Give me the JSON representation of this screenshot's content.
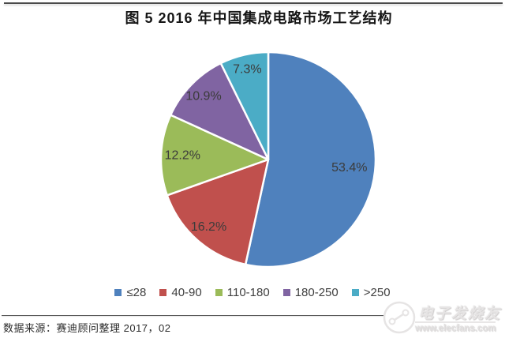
{
  "header": {
    "title": "图 5  2016 年中国集成电路市场工艺结构"
  },
  "chart_data": {
    "type": "pie",
    "title": "图 5  2016 年中国集成电路市场工艺结构",
    "categories": [
      "≤28",
      "40-90",
      "110-180",
      "180-250",
      ">250"
    ],
    "values": [
      53.4,
      16.2,
      12.2,
      10.9,
      7.3
    ],
    "value_labels": [
      "53.4%",
      "16.2%",
      "12.2%",
      "10.9%",
      "7.3%"
    ],
    "colors": [
      "#4f81bd",
      "#c0504d",
      "#9bbb59",
      "#8064a2",
      "#4bacc6"
    ],
    "label_color": "#3b3b3b",
    "separator_color": "#ffffff",
    "start_angle_deg": 0,
    "direction": "clockwise",
    "legend_position": "bottom",
    "legend_labels": [
      "≤28",
      "40-90",
      "110-180",
      "180-250",
      ">250"
    ]
  },
  "footer": {
    "source": "数据来源：赛迪顾问整理  2017，02"
  },
  "watermark": {
    "brand": "电子发烧友",
    "url": "www.elecfans.com"
  }
}
